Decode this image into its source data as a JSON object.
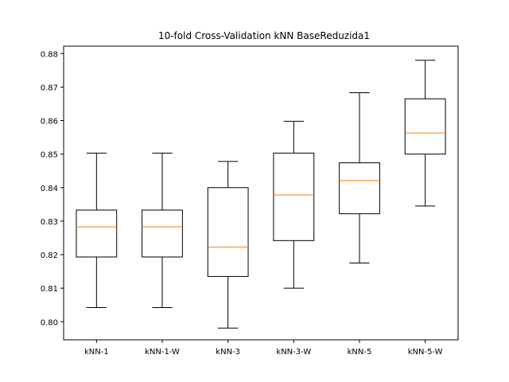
{
  "chart_data": {
    "type": "boxplot",
    "title": "10-fold Cross-Validation kNN BaseReduzida1",
    "xlabel": "",
    "ylabel": "",
    "categories": [
      "kNN-1",
      "kNN-1-W",
      "kNN-3",
      "kNN-3-W",
      "kNN-5",
      "kNN-5-W"
    ],
    "boxes": [
      {
        "label": "kNN-1",
        "whisker_low": 0.8042,
        "q1": 0.8193,
        "median": 0.8283,
        "q3": 0.8333,
        "whisker_high": 0.8503
      },
      {
        "label": "kNN-1-W",
        "whisker_low": 0.8042,
        "q1": 0.8193,
        "median": 0.8283,
        "q3": 0.8333,
        "whisker_high": 0.8503
      },
      {
        "label": "kNN-3",
        "whisker_low": 0.7981,
        "q1": 0.8135,
        "median": 0.8223,
        "q3": 0.84,
        "whisker_high": 0.8478
      },
      {
        "label": "kNN-3-W",
        "whisker_low": 0.81,
        "q1": 0.8242,
        "median": 0.8378,
        "q3": 0.8503,
        "whisker_high": 0.8598
      },
      {
        "label": "kNN-5",
        "whisker_low": 0.8175,
        "q1": 0.8322,
        "median": 0.8421,
        "q3": 0.8474,
        "whisker_high": 0.8683
      },
      {
        "label": "kNN-5-W",
        "whisker_low": 0.8345,
        "q1": 0.85,
        "median": 0.8563,
        "q3": 0.8665,
        "whisker_high": 0.878
      }
    ],
    "ylim": [
      0.7946,
      0.8822
    ],
    "yticks": [
      "0.80",
      "0.81",
      "0.82",
      "0.83",
      "0.84",
      "0.85",
      "0.86",
      "0.87",
      "0.88"
    ],
    "grid": false,
    "colors": {
      "box": "#000000",
      "median": "#ff7f0e",
      "background": "#ffffff"
    }
  }
}
